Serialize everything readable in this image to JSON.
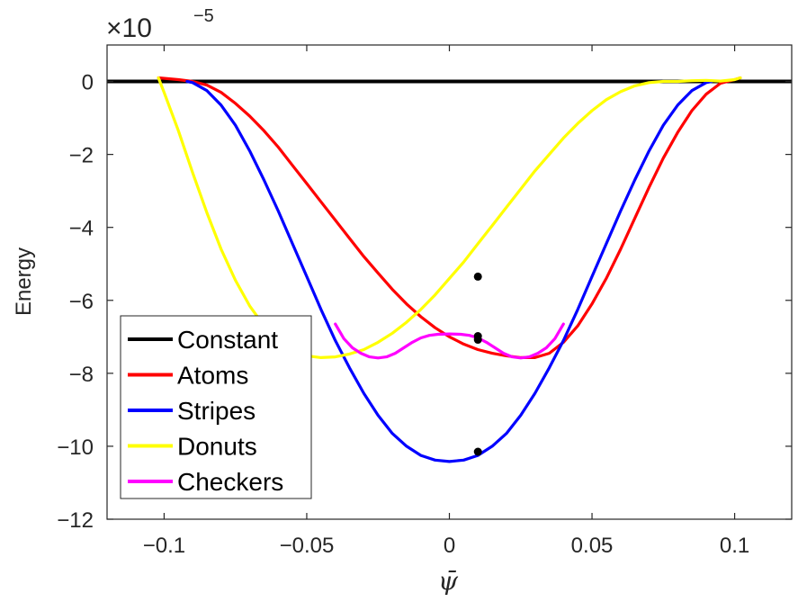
{
  "chart_data": {
    "type": "line",
    "xlabel": "ψ̄",
    "ylabel": "Energy",
    "y_multiplier": {
      "base": "×10",
      "exponent": "−5"
    },
    "xlim": [
      -0.12,
      0.12
    ],
    "ylim": [
      -12,
      1
    ],
    "x_ticks": [
      -0.1,
      -0.05,
      0,
      0.05,
      0.1
    ],
    "x_tick_labels": [
      "−0.1",
      "−0.05",
      "0",
      "0.05",
      "0.1"
    ],
    "y_ticks": [
      0,
      -2,
      -4,
      -6,
      -8,
      -10,
      -12
    ],
    "y_tick_labels": [
      "0",
      "−2",
      "−4",
      "−6",
      "−8",
      "−10",
      "−12"
    ],
    "grid": false,
    "legend_position": "bottom-left",
    "series": [
      {
        "name": "Constant",
        "color": "#000000",
        "points": [
          [
            -0.12,
            0
          ],
          [
            0.12,
            0
          ]
        ]
      },
      {
        "name": "Atoms",
        "color": "#ff0000",
        "points": [
          [
            -0.102,
            0.1
          ],
          [
            -0.095,
            0.05
          ],
          [
            -0.09,
            0.0
          ],
          [
            -0.085,
            -0.1
          ],
          [
            -0.08,
            -0.3
          ],
          [
            -0.075,
            -0.6
          ],
          [
            -0.07,
            -0.95
          ],
          [
            -0.065,
            -1.35
          ],
          [
            -0.06,
            -1.8
          ],
          [
            -0.055,
            -2.3
          ],
          [
            -0.05,
            -2.8
          ],
          [
            -0.045,
            -3.3
          ],
          [
            -0.04,
            -3.8
          ],
          [
            -0.035,
            -4.3
          ],
          [
            -0.03,
            -4.8
          ],
          [
            -0.025,
            -5.25
          ],
          [
            -0.02,
            -5.7
          ],
          [
            -0.015,
            -6.1
          ],
          [
            -0.01,
            -6.45
          ],
          [
            -0.005,
            -6.75
          ],
          [
            0.0,
            -7.0
          ],
          [
            0.005,
            -7.2
          ],
          [
            0.01,
            -7.35
          ],
          [
            0.015,
            -7.45
          ],
          [
            0.02,
            -7.52
          ],
          [
            0.025,
            -7.57
          ],
          [
            0.03,
            -7.57
          ],
          [
            0.035,
            -7.45
          ],
          [
            0.04,
            -7.15
          ],
          [
            0.045,
            -6.7
          ],
          [
            0.05,
            -6.1
          ],
          [
            0.055,
            -5.4
          ],
          [
            0.06,
            -4.6
          ],
          [
            0.065,
            -3.75
          ],
          [
            0.07,
            -2.9
          ],
          [
            0.075,
            -2.1
          ],
          [
            0.08,
            -1.4
          ],
          [
            0.085,
            -0.8
          ],
          [
            0.09,
            -0.35
          ],
          [
            0.095,
            -0.05
          ],
          [
            0.1,
            0.05
          ],
          [
            0.102,
            0.1
          ]
        ]
      },
      {
        "name": "Stripes",
        "color": "#0000ff",
        "points": [
          [
            -0.092,
            0.0
          ],
          [
            -0.09,
            -0.03
          ],
          [
            -0.085,
            -0.25
          ],
          [
            -0.08,
            -0.65
          ],
          [
            -0.075,
            -1.2
          ],
          [
            -0.07,
            -1.9
          ],
          [
            -0.065,
            -2.7
          ],
          [
            -0.06,
            -3.55
          ],
          [
            -0.055,
            -4.45
          ],
          [
            -0.05,
            -5.35
          ],
          [
            -0.045,
            -6.25
          ],
          [
            -0.04,
            -7.1
          ],
          [
            -0.035,
            -7.85
          ],
          [
            -0.03,
            -8.55
          ],
          [
            -0.025,
            -9.15
          ],
          [
            -0.02,
            -9.65
          ],
          [
            -0.015,
            -10.0
          ],
          [
            -0.01,
            -10.25
          ],
          [
            -0.005,
            -10.38
          ],
          [
            0.0,
            -10.42
          ],
          [
            0.005,
            -10.38
          ],
          [
            0.01,
            -10.25
          ],
          [
            0.015,
            -10.0
          ],
          [
            0.02,
            -9.65
          ],
          [
            0.025,
            -9.15
          ],
          [
            0.03,
            -8.55
          ],
          [
            0.035,
            -7.85
          ],
          [
            0.04,
            -7.1
          ],
          [
            0.045,
            -6.25
          ],
          [
            0.05,
            -5.35
          ],
          [
            0.055,
            -4.45
          ],
          [
            0.06,
            -3.55
          ],
          [
            0.065,
            -2.7
          ],
          [
            0.07,
            -1.9
          ],
          [
            0.075,
            -1.2
          ],
          [
            0.08,
            -0.65
          ],
          [
            0.085,
            -0.25
          ],
          [
            0.09,
            -0.03
          ],
          [
            0.092,
            0.0
          ]
        ]
      },
      {
        "name": "Donuts",
        "color": "#ffff00",
        "points": [
          [
            -0.102,
            0.1
          ],
          [
            -0.1,
            -0.3
          ],
          [
            -0.095,
            -1.35
          ],
          [
            -0.09,
            -2.5
          ],
          [
            -0.085,
            -3.6
          ],
          [
            -0.08,
            -4.6
          ],
          [
            -0.075,
            -5.45
          ],
          [
            -0.07,
            -6.15
          ],
          [
            -0.065,
            -6.7
          ],
          [
            -0.06,
            -7.1
          ],
          [
            -0.055,
            -7.38
          ],
          [
            -0.05,
            -7.52
          ],
          [
            -0.045,
            -7.57
          ],
          [
            -0.04,
            -7.55
          ],
          [
            -0.035,
            -7.47
          ],
          [
            -0.03,
            -7.35
          ],
          [
            -0.025,
            -7.15
          ],
          [
            -0.02,
            -6.9
          ],
          [
            -0.015,
            -6.6
          ],
          [
            -0.01,
            -6.25
          ],
          [
            -0.005,
            -5.85
          ],
          [
            0.0,
            -5.4
          ],
          [
            0.005,
            -4.95
          ],
          [
            0.01,
            -4.45
          ],
          [
            0.015,
            -3.95
          ],
          [
            0.02,
            -3.45
          ],
          [
            0.025,
            -2.95
          ],
          [
            0.03,
            -2.45
          ],
          [
            0.035,
            -2.0
          ],
          [
            0.04,
            -1.55
          ],
          [
            0.045,
            -1.15
          ],
          [
            0.05,
            -0.8
          ],
          [
            0.055,
            -0.5
          ],
          [
            0.06,
            -0.28
          ],
          [
            0.065,
            -0.12
          ],
          [
            0.07,
            -0.03
          ],
          [
            0.075,
            0.0
          ],
          [
            0.08,
            0.0
          ],
          [
            0.085,
            0.02
          ],
          [
            0.09,
            0.03
          ],
          [
            0.095,
            0.01
          ],
          [
            0.1,
            0.05
          ],
          [
            0.102,
            0.1
          ]
        ]
      },
      {
        "name": "Checkers",
        "color": "#ff00ff",
        "points": [
          [
            -0.04,
            -6.65
          ],
          [
            -0.037,
            -7.05
          ],
          [
            -0.034,
            -7.3
          ],
          [
            -0.031,
            -7.45
          ],
          [
            -0.028,
            -7.55
          ],
          [
            -0.025,
            -7.58
          ],
          [
            -0.022,
            -7.55
          ],
          [
            -0.019,
            -7.45
          ],
          [
            -0.016,
            -7.3
          ],
          [
            -0.013,
            -7.15
          ],
          [
            -0.01,
            -7.03
          ],
          [
            -0.007,
            -6.96
          ],
          [
            -0.004,
            -6.93
          ],
          [
            0.0,
            -6.92
          ],
          [
            0.004,
            -6.93
          ],
          [
            0.007,
            -6.96
          ],
          [
            0.01,
            -7.03
          ],
          [
            0.013,
            -7.15
          ],
          [
            0.016,
            -7.3
          ],
          [
            0.019,
            -7.45
          ],
          [
            0.022,
            -7.55
          ],
          [
            0.025,
            -7.58
          ],
          [
            0.028,
            -7.55
          ],
          [
            0.031,
            -7.45
          ],
          [
            0.034,
            -7.3
          ],
          [
            0.037,
            -7.05
          ],
          [
            0.04,
            -6.65
          ]
        ]
      }
    ],
    "markers": [
      {
        "x": 0.01,
        "y": -5.35,
        "color": "#000000"
      },
      {
        "x": 0.01,
        "y": -6.98,
        "color": "#000000"
      },
      {
        "x": 0.01,
        "y": -7.08,
        "color": "#000000"
      },
      {
        "x": 0.01,
        "y": -10.15,
        "color": "#000000"
      }
    ]
  }
}
